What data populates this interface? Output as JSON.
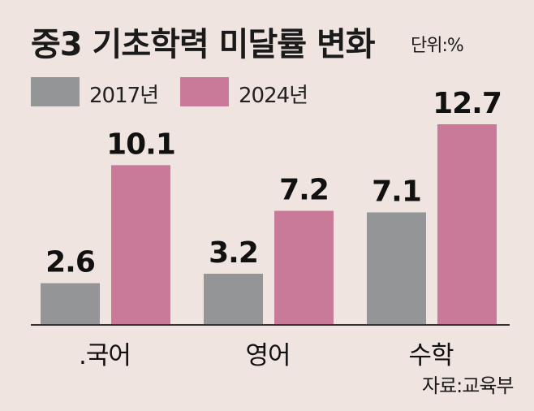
{
  "header": {
    "title": "중3 기초학력 미달률 변화",
    "unit": "단위:%"
  },
  "legend": [
    {
      "label": "2017년",
      "color": "#939597"
    },
    {
      "label": "2024년",
      "color": "#c97a99"
    }
  ],
  "source": "자료:교육부",
  "chart_data": {
    "type": "bar",
    "title": "중3 기초학력 미달률 변화",
    "categories": [
      ".국어",
      "영어",
      "수학"
    ],
    "series": [
      {
        "name": "2017년",
        "values": [
          2.6,
          3.2,
          7.1
        ],
        "labels": [
          "2.6",
          "3.2",
          "7.1"
        ],
        "color": "#939597"
      },
      {
        "name": "2024년",
        "values": [
          10.1,
          7.2,
          12.7
        ],
        "labels": [
          "10.1",
          "7.2",
          "12.7"
        ],
        "color": "#c97a99"
      }
    ],
    "ylim": [
      0,
      12.7
    ],
    "grid": false,
    "legend_position": "top-left"
  }
}
